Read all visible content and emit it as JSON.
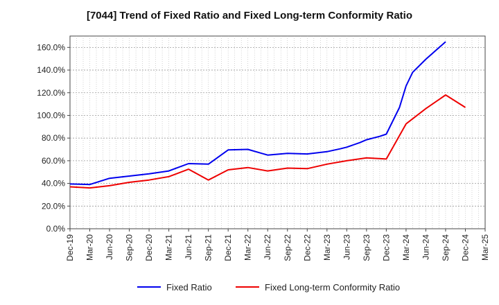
{
  "chart_data": {
    "type": "line",
    "title": "[7044]  Trend of Fixed Ratio and Fixed Long-term Conformity Ratio",
    "xlabel": "",
    "ylabel": "",
    "x_tick_labels": [
      "Dec-19",
      "Mar-20",
      "Jun-20",
      "Sep-20",
      "Dec-20",
      "Mar-21",
      "Jun-21",
      "Sep-21",
      "Dec-21",
      "Mar-22",
      "Jun-22",
      "Sep-22",
      "Dec-22",
      "Mar-23",
      "Jun-23",
      "Sep-23",
      "Dec-23",
      "Mar-24",
      "Jun-24",
      "Sep-24",
      "Dec-24",
      "Mar-25"
    ],
    "y_tick_labels": [
      "0.0%",
      "20.0%",
      "40.0%",
      "60.0%",
      "80.0%",
      "100.0%",
      "120.0%",
      "140.0%",
      "160.0%"
    ],
    "ylim": [
      0,
      170
    ],
    "y_ticks": [
      0,
      20,
      40,
      60,
      80,
      100,
      120,
      140,
      160
    ],
    "x_month_range": [
      0,
      63
    ],
    "grid": true,
    "legend_position": "bottom-center",
    "series": [
      {
        "name": "Fixed Ratio",
        "color": "#0000ee",
        "x": [
          "Dec-19",
          "Mar-20",
          "Jun-20",
          "Sep-20",
          "Dec-20",
          "Mar-21",
          "Jun-21",
          "Sep-21",
          "Dec-21",
          "Mar-22",
          "Jun-22",
          "Sep-22",
          "Dec-22",
          "Mar-23",
          "Jun-23",
          "Jun-23",
          "Sep-23",
          "Sep-23",
          "Dec-23",
          "Mar-24",
          "Mar-24",
          "Jun-24",
          "Sep-24",
          "Sep-24",
          "Dec-24"
        ],
        "months": [
          0,
          3,
          6,
          9,
          12,
          15,
          18,
          21,
          24,
          27,
          30,
          33,
          36,
          39,
          41,
          42,
          44,
          45,
          47,
          48,
          50,
          51,
          52,
          54,
          57
        ],
        "values": [
          39.5,
          39,
          44.5,
          46.5,
          48.5,
          51,
          57.5,
          57,
          69.5,
          70,
          65,
          66.5,
          66,
          68,
          70.5,
          72,
          76,
          78.5,
          81.5,
          83.5,
          107,
          126,
          138,
          149.5,
          165
        ]
      },
      {
        "name": "Fixed Long-term Conformity Ratio",
        "color": "#ee0000",
        "x": [
          "Dec-19",
          "Mar-20",
          "Jun-20",
          "Sep-20",
          "Dec-20",
          "Mar-21",
          "Jun-21",
          "Sep-21",
          "Dec-21",
          "Mar-22",
          "Jun-22",
          "Sep-22",
          "Dec-22",
          "Mar-23",
          "Jun-23",
          "Sep-23",
          "Dec-23",
          "Mar-24",
          "Jun-24",
          "Sep-24",
          "Dec-24"
        ],
        "months": [
          0,
          3,
          6,
          9,
          12,
          15,
          18,
          21,
          24,
          27,
          30,
          33,
          36,
          39,
          42,
          45,
          48,
          51,
          54,
          57,
          60
        ],
        "values": [
          37,
          36,
          38,
          41,
          43,
          46,
          52.5,
          43,
          52,
          54,
          51,
          53.5,
          53,
          57,
          60,
          62.5,
          61.5,
          92.5,
          106,
          118,
          107
        ]
      }
    ]
  }
}
